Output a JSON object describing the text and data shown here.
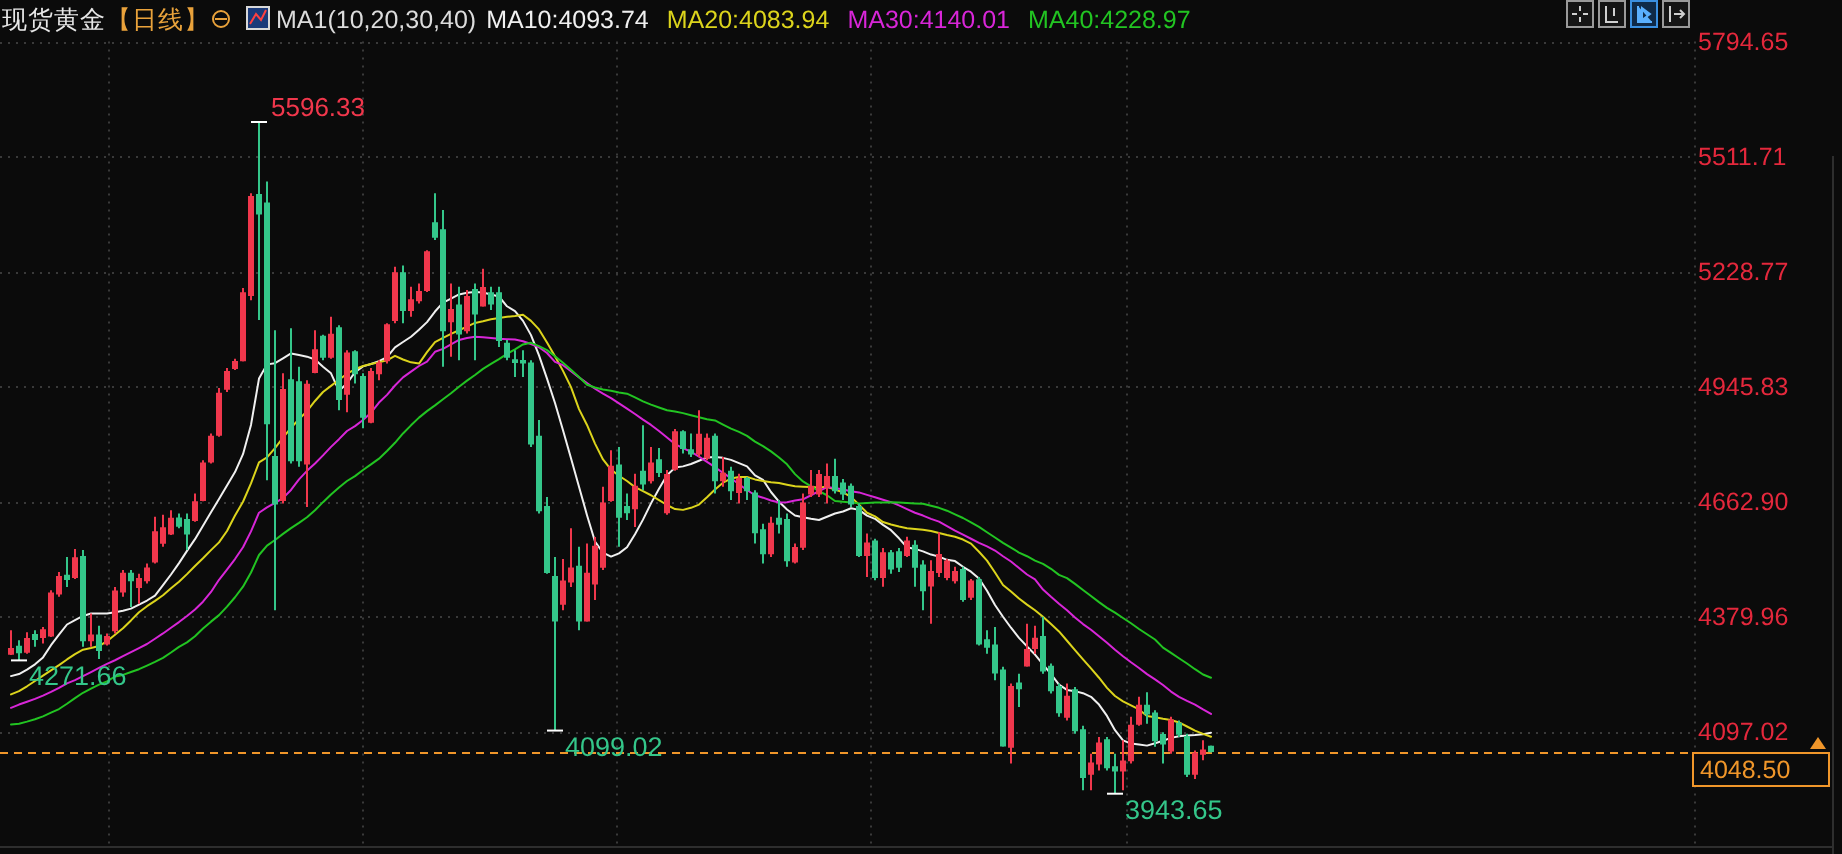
{
  "chart_data": {
    "type": "candlestick",
    "title": "现货黄金",
    "subtitle": "【日线】",
    "legend_title": "MA1(10,20,30,40)",
    "categories": [
      null,
      null,
      null,
      null,
      null,
      null,
      null,
      null,
      null,
      null,
      null,
      null,
      null,
      null,
      null,
      null,
      null,
      null,
      null,
      null,
      null,
      null,
      null,
      null,
      null,
      null,
      null,
      null,
      null,
      null,
      null,
      null,
      null,
      null,
      null,
      null,
      null,
      null,
      null,
      null,
      null,
      null,
      null,
      null,
      null,
      null,
      null,
      null,
      null,
      null,
      null,
      null,
      null,
      null,
      null,
      null,
      null,
      null,
      null,
      null,
      null,
      null,
      null,
      null,
      null,
      null,
      null,
      null,
      null,
      null,
      null,
      null,
      null,
      null,
      null,
      null,
      null,
      null,
      null,
      null,
      null,
      null,
      null,
      null,
      null,
      null,
      null,
      null,
      null,
      null,
      null,
      null,
      null,
      null,
      null,
      null,
      null,
      null,
      null,
      null,
      null,
      null,
      null,
      null,
      null,
      null,
      null,
      null,
      null,
      null,
      null,
      null,
      null,
      null,
      null,
      null,
      null,
      null,
      null,
      null,
      null,
      null,
      null,
      null,
      null,
      null,
      null,
      null,
      null,
      null,
      null,
      null,
      null,
      null,
      null,
      null,
      null,
      null,
      null,
      null,
      null,
      null,
      null,
      null,
      null,
      null,
      null,
      null,
      null,
      null,
      null
    ],
    "ohlc": [
      [
        4288,
        4346,
        4285,
        4300
      ],
      [
        4305,
        4321,
        4271.66,
        4292
      ],
      [
        4293,
        4341,
        4288,
        4324
      ],
      [
        4334,
        4346,
        4305,
        4324
      ],
      [
        4329,
        4354,
        4313,
        4346
      ],
      [
        4333,
        4444,
        4329,
        4436
      ],
      [
        4436,
        4489,
        4428,
        4477
      ],
      [
        4480,
        4526,
        4452,
        4472
      ],
      [
        4477,
        4546,
        4472,
        4523
      ],
      [
        4526,
        4543,
        4305,
        4321
      ],
      [
        4321,
        4387,
        4305,
        4333
      ],
      [
        4333,
        4357,
        4275,
        4297
      ],
      [
        4313,
        4338,
        4308,
        4329
      ],
      [
        4346,
        4452,
        4338,
        4441
      ],
      [
        4441,
        4494,
        4428,
        4485
      ],
      [
        4485,
        4494,
        4403,
        4469
      ],
      [
        4452,
        4485,
        4411,
        4472
      ],
      [
        4469,
        4510,
        4461,
        4498
      ],
      [
        4515,
        4625,
        4510,
        4587
      ],
      [
        4561,
        4630,
        4551,
        4597
      ],
      [
        4584,
        4641,
        4580,
        4620
      ],
      [
        4621,
        4633,
        4597,
        4603
      ],
      [
        4617,
        4633,
        4543,
        4584
      ],
      [
        4617,
        4682,
        4613,
        4661
      ],
      [
        4666,
        4764,
        4663,
        4756
      ],
      [
        4761,
        4830,
        4756,
        4822
      ],
      [
        4827,
        4942,
        4822,
        4928
      ],
      [
        4940,
        4991,
        4932,
        4981
      ],
      [
        4991,
        5014,
        4986,
        5006
      ],
      [
        5010,
        5188,
        5007,
        5175
      ],
      [
        5171,
        5421,
        5158,
        5412
      ],
      [
        5417,
        5596.33,
        5109,
        5371
      ],
      [
        5396,
        5450,
        4715,
        4855
      ],
      [
        4772,
        5084,
        4395,
        4658
      ],
      [
        4666,
        4978,
        4658,
        4937
      ],
      [
        4961,
        5089,
        4756,
        4764
      ],
      [
        4956,
        4994,
        4748,
        4764
      ],
      [
        4756,
        4961,
        4649,
        4950
      ],
      [
        4981,
        5084,
        4978,
        5035
      ],
      [
        5068,
        5073,
        5010,
        5019
      ],
      [
        5019,
        5117,
        5014,
        5073
      ],
      [
        5089,
        5096,
        4887,
        4915
      ],
      [
        4928,
        5035,
        4882,
        5027
      ],
      [
        5030,
        5035,
        4953,
        4978
      ],
      [
        4969,
        4978,
        4843,
        4871
      ],
      [
        4859,
        4991,
        4855,
        4981
      ],
      [
        4978,
        5010,
        4961,
        5002
      ],
      [
        5010,
        5101,
        5002,
        5096
      ],
      [
        5109,
        5240,
        5101,
        5224
      ],
      [
        5224,
        5243,
        5101,
        5134
      ],
      [
        5134,
        5191,
        5117,
        5158
      ],
      [
        5158,
        5199,
        5150,
        5178
      ],
      [
        5183,
        5281,
        5178,
        5276
      ],
      [
        5347,
        5421,
        5306,
        5314
      ],
      [
        5330,
        5380,
        4994,
        5084
      ],
      [
        5106,
        5199,
        5019,
        5134
      ],
      [
        5145,
        5191,
        5010,
        5076
      ],
      [
        5084,
        5183,
        5076,
        5166
      ],
      [
        5183,
        5199,
        5010,
        5125
      ],
      [
        5145,
        5235,
        5142,
        5188
      ],
      [
        5175,
        5191,
        5134,
        5150
      ],
      [
        5175,
        5191,
        5043,
        5060
      ],
      [
        5051,
        5060,
        5010,
        5019
      ],
      [
        5010,
        5035,
        4969,
        5006
      ],
      [
        5008,
        5035,
        4969,
        5005
      ],
      [
        5002,
        5010,
        4797,
        4805
      ],
      [
        4822,
        4863,
        4633,
        4641
      ],
      [
        4649,
        4674,
        4485,
        4489
      ],
      [
        4477,
        4526,
        4099.02,
        4370
      ],
      [
        4411,
        4521,
        4395,
        4466
      ],
      [
        4466,
        4597,
        4452,
        4498
      ],
      [
        4502,
        4551,
        4346,
        4370
      ],
      [
        4370,
        4559,
        4367,
        4485
      ],
      [
        4461,
        4575,
        4420,
        4551
      ],
      [
        4502,
        4699,
        4494,
        4658
      ],
      [
        4666,
        4789,
        4662,
        4748
      ],
      [
        4751,
        4797,
        4551,
        4625
      ],
      [
        4649,
        4682,
        4617,
        4636
      ],
      [
        4646,
        4731,
        4600,
        4699
      ],
      [
        4736,
        4850,
        4690,
        4707
      ],
      [
        4715,
        4797,
        4707,
        4756
      ],
      [
        4764,
        4794,
        4723,
        4735
      ],
      [
        4636,
        4740,
        4630,
        4728
      ],
      [
        4743,
        4841,
        4738,
        4833
      ],
      [
        4833,
        4838,
        4781,
        4794
      ],
      [
        4789,
        4830,
        4772,
        4781
      ],
      [
        4781,
        4887,
        4772,
        4827
      ],
      [
        4771,
        4830,
        4764,
        4817
      ],
      [
        4822,
        4830,
        4682,
        4715
      ],
      [
        4715,
        4772,
        4699,
        4731
      ],
      [
        4736,
        4748,
        4666,
        4690
      ],
      [
        4686,
        4731,
        4658,
        4718
      ],
      [
        4718,
        4723,
        4666,
        4690
      ],
      [
        4682,
        4690,
        4559,
        4587
      ],
      [
        4592,
        4608,
        4510,
        4535
      ],
      [
        4535,
        4625,
        4526,
        4608
      ],
      [
        4620,
        4666,
        4584,
        4608
      ],
      [
        4617,
        4633,
        4502,
        4518
      ],
      [
        4515,
        4559,
        4510,
        4548
      ],
      [
        4551,
        4682,
        4543,
        4658
      ],
      [
        4682,
        4740,
        4674,
        4699
      ],
      [
        4682,
        4740,
        4674,
        4728
      ],
      [
        4699,
        4756,
        4658,
        4723
      ],
      [
        4723,
        4768,
        4682,
        4690
      ],
      [
        4707,
        4718,
        4666,
        4682
      ],
      [
        4699,
        4707,
        4649,
        4658
      ],
      [
        4649,
        4658,
        4526,
        4531
      ],
      [
        4531,
        4584,
        4477,
        4559
      ],
      [
        4564,
        4571,
        4469,
        4477
      ],
      [
        4477,
        4548,
        4453,
        4535
      ],
      [
        4535,
        4543,
        4485,
        4498
      ],
      [
        4538,
        4548,
        4489,
        4502
      ],
      [
        4531,
        4576,
        4526,
        4564
      ],
      [
        4554,
        4567,
        4453,
        4502
      ],
      [
        4505,
        4518,
        4395,
        4444
      ],
      [
        4456,
        4518,
        4362,
        4489
      ],
      [
        4489,
        4587,
        4477,
        4531
      ],
      [
        4477,
        4521,
        4469,
        4515
      ],
      [
        4469,
        4502,
        4461,
        4489
      ],
      [
        4494,
        4502,
        4416,
        4423
      ],
      [
        4428,
        4472,
        4420,
        4466
      ],
      [
        4469,
        4477,
        4308,
        4313
      ],
      [
        4321,
        4346,
        4288,
        4305
      ],
      [
        4308,
        4354,
        4223,
        4242
      ],
      [
        4247,
        4256,
        4059,
        4062
      ],
      [
        4059,
        4215,
        4018,
        4206
      ],
      [
        4215,
        4239,
        4157,
        4203
      ],
      [
        4259,
        4362,
        4256,
        4297
      ],
      [
        4302,
        4357,
        4288,
        4325
      ],
      [
        4329,
        4379,
        4239,
        4247
      ],
      [
        4256,
        4264,
        4190,
        4198
      ],
      [
        4206,
        4215,
        4133,
        4144
      ],
      [
        4133,
        4215,
        4124,
        4182
      ],
      [
        4198,
        4206,
        4091,
        4100
      ],
      [
        4100,
        4111,
        3952,
        3985
      ],
      [
        3993,
        4042,
        3952,
        4018
      ],
      [
        4018,
        4083,
        4001,
        4067
      ],
      [
        4075,
        4083,
        4001,
        4009
      ],
      [
        4009,
        4042,
        3943.65,
        4001
      ],
      [
        4001,
        4075,
        3952,
        4023
      ],
      [
        4026,
        4133,
        4018,
        4111
      ],
      [
        4116,
        4182,
        4111,
        4160
      ],
      [
        4160,
        4193,
        4116,
        4141
      ],
      [
        4141,
        4149,
        4059,
        4075
      ],
      [
        4088,
        4095,
        4018,
        4067
      ],
      [
        4050,
        4133,
        4042,
        4124
      ],
      [
        4116,
        4124,
        4083,
        4091
      ],
      [
        4083,
        4091,
        3985,
        3993
      ],
      [
        3993,
        4050,
        3980,
        4042
      ],
      [
        4042,
        4075,
        4026,
        4050
      ],
      [
        4059,
        4062,
        4045,
        4048.5
      ]
    ],
    "colors": [
      "#f0374c",
      "#34c68a",
      "#f0374c",
      "#34c68a",
      "#f0374c",
      "#f0374c",
      "#f0374c",
      "#34c68a",
      "#f0374c",
      "#34c68a",
      "#f0374c",
      "#34c68a",
      "#f0374c",
      "#f0374c",
      "#f0374c",
      "#34c68a",
      "#f0374c",
      "#f0374c",
      "#f0374c",
      "#f0374c",
      "#f0374c",
      "#34c68a",
      "#34c68a",
      "#f0374c",
      "#f0374c",
      "#f0374c",
      "#f0374c",
      "#f0374c",
      "#f0374c",
      "#f0374c",
      "#f0374c",
      "#34c68a",
      "#34c68a",
      "#34c68a",
      "#f0374c",
      "#34c68a",
      "#34c68a",
      "#f0374c",
      "#f0374c",
      "#34c68a",
      "#f0374c",
      "#34c68a",
      "#f0374c",
      "#34c68a",
      "#34c68a",
      "#f0374c",
      "#f0374c",
      "#f0374c",
      "#f0374c",
      "#34c68a",
      "#f0374c",
      "#f0374c",
      "#f0374c",
      "#34c68a",
      "#34c68a",
      "#f0374c",
      "#34c68a",
      "#f0374c",
      "#34c68a",
      "#f0374c",
      "#34c68a",
      "#34c68a",
      "#34c68a",
      "#34c68a",
      "#34c68a",
      "#34c68a",
      "#34c68a",
      "#34c68a",
      "#34c68a",
      "#f0374c",
      "#f0374c",
      "#34c68a",
      "#f0374c",
      "#f0374c",
      "#f0374c",
      "#f0374c",
      "#34c68a",
      "#34c68a",
      "#f0374c",
      "#34c68a",
      "#f0374c",
      "#34c68a",
      "#f0374c",
      "#f0374c",
      "#34c68a",
      "#34c68a",
      "#f0374c",
      "#f0374c",
      "#34c68a",
      "#f0374c",
      "#34c68a",
      "#f0374c",
      "#34c68a",
      "#34c68a",
      "#34c68a",
      "#f0374c",
      "#34c68a",
      "#34c68a",
      "#f0374c",
      "#f0374c",
      "#f0374c",
      "#f0374c",
      "#f0374c",
      "#34c68a",
      "#34c68a",
      "#34c68a",
      "#34c68a",
      "#f0374c",
      "#34c68a",
      "#f0374c",
      "#34c68a",
      "#34c68a",
      "#f0374c",
      "#34c68a",
      "#34c68a",
      "#f0374c",
      "#f0374c",
      "#f0374c",
      "#f0374c",
      "#34c68a",
      "#f0374c",
      "#34c68a",
      "#34c68a",
      "#34c68a",
      "#34c68a",
      "#f0374c",
      "#34c68a",
      "#f0374c",
      "#f0374c",
      "#34c68a",
      "#34c68a",
      "#34c68a",
      "#f0374c",
      "#34c68a",
      "#34c68a",
      "#f0374c",
      "#f0374c",
      "#34c68a",
      "#34c68a",
      "#f0374c",
      "#f0374c",
      "#f0374c",
      "#34c68a",
      "#34c68a",
      "#34c68a",
      "#f0374c",
      "#34c68a",
      "#34c68a",
      "#f0374c",
      "#f0374c",
      "#34c68a"
    ],
    "series": [
      {
        "name": "MA10:4093.74",
        "type": "line",
        "color": "#f0f0f0",
        "values": [
          4233,
          4238,
          4249,
          4262,
          4279,
          4309,
          4335,
          4360,
          4371,
          4381,
          4387,
          4387,
          4387,
          4390,
          4394,
          4399,
          4409,
          4419,
          4431,
          4457,
          4483,
          4511,
          4541,
          4570,
          4603,
          4636,
          4669,
          4702,
          4735,
          4779,
          4851,
          4965,
          5000,
          5003,
          5015,
          5027,
          5023,
          5019,
          5012,
          4994,
          4978,
          4935,
          4953,
          4981,
          4995,
          5001,
          5008,
          5018,
          5042,
          5055,
          5068,
          5085,
          5104,
          5130,
          5152,
          5162,
          5172,
          5176,
          5178,
          5177,
          5172,
          5167,
          5143,
          5131,
          5107,
          5072,
          5022,
          4965,
          4905,
          4838,
          4769,
          4699,
          4629,
          4564,
          4537,
          4527,
          4535,
          4550,
          4582,
          4618,
          4658,
          4694,
          4727,
          4746,
          4749,
          4755,
          4763,
          4771,
          4772,
          4770,
          4765,
          4757,
          4749,
          4727,
          4716,
          4686,
          4662,
          4643,
          4628,
          4624,
          4620,
          4617,
          4625,
          4633,
          4638,
          4646,
          4642,
          4628,
          4620,
          4605,
          4592,
          4572,
          4550,
          4546,
          4540,
          4532,
          4527,
          4519,
          4516,
          4502,
          4490,
          4473,
          4443,
          4408,
          4379,
          4352,
          4327,
          4306,
          4286,
          4262,
          4238,
          4212,
          4199,
          4196,
          4191,
          4182,
          4163,
          4135,
          4100,
          4075,
          4067,
          4065,
          4062,
          4068,
          4074,
          4081,
          4085,
          4087,
          4088,
          4090,
          4093.74
        ]
      },
      {
        "name": "MA20:4083.94",
        "type": "line",
        "color": "#dcd41c",
        "values": [
          4188,
          4196,
          4208,
          4221,
          4234,
          4247,
          4260,
          4274,
          4287,
          4298,
          4302,
          4307,
          4319,
          4335,
          4351,
          4370,
          4390,
          4405,
          4418,
          4432,
          4449,
          4465,
          4484,
          4504,
          4523,
          4543,
          4562,
          4590,
          4628,
          4662,
          4707,
          4759,
          4771,
          4794,
          4820,
          4844,
          4865,
          4885,
          4910,
          4932,
          4947,
          4962,
          4977,
          4988,
          4996,
          5001,
          5005,
          5010,
          5021,
          5012,
          5005,
          5002,
          5030,
          5055,
          5065,
          5075,
          5084,
          5093,
          5102,
          5106,
          5111,
          5114,
          5117,
          5119,
          5122,
          5107,
          5086,
          5054,
          5020,
          4984,
          4944,
          4890,
          4851,
          4805,
          4766,
          4741,
          4726,
          4713,
          4698,
          4688,
          4678,
          4666,
          4654,
          4644,
          4642,
          4647,
          4655,
          4673,
          4692,
          4709,
          4719,
          4723,
          4723,
          4717,
          4713,
          4710,
          4708,
          4704,
          4700,
          4699,
          4698,
          4697,
          4699,
          4692,
          4685,
          4674,
          4655,
          4635,
          4626,
          4612,
          4606,
          4601,
          4597,
          4595,
          4593,
          4590,
          4585,
          4580,
          4576,
          4569,
          4559,
          4539,
          4517,
          4488,
          4457,
          4441,
          4424,
          4409,
          4395,
          4379,
          4361,
          4343,
          4320,
          4297,
          4274,
          4252,
          4229,
          4204,
          4184,
          4171,
          4161,
          4151,
          4135,
          4132,
          4128,
          4125,
          4119,
          4109,
          4099,
          4091,
          4083.94
        ]
      },
      {
        "name": "MA30:4140.01",
        "type": "line",
        "color": "#d826d8",
        "values": [
          4155,
          4163,
          4170,
          4177,
          4185,
          4194,
          4204,
          4215,
          4223,
          4233,
          4243,
          4253,
          4263,
          4272,
          4282,
          4292,
          4302,
          4312,
          4325,
          4338,
          4352,
          4366,
          4381,
          4397,
          4416,
          4440,
          4470,
          4495,
          4521,
          4550,
          4589,
          4635,
          4648,
          4659,
          4671,
          4691,
          4717,
          4738,
          4756,
          4776,
          4797,
          4816,
          4836,
          4848,
          4863,
          4881,
          4906,
          4925,
          4948,
          4968,
          4982,
          4996,
          5007,
          5031,
          5038,
          5049,
          5060,
          5065,
          5068,
          5067,
          5065,
          5063,
          5062,
          5061,
          5057,
          5050,
          5042,
          5028,
          5006,
          4998,
          4983,
          4968,
          4954,
          4940,
          4928,
          4917,
          4904,
          4891,
          4878,
          4864,
          4851,
          4836,
          4820,
          4804,
          4794,
          4785,
          4773,
          4760,
          4747,
          4733,
          4720,
          4705,
          4691,
          4678,
          4672,
          4665,
          4660,
          4661,
          4665,
          4668,
          4678,
          4688,
          4698,
          4696,
          4692,
          4688,
          4685,
          4679,
          4673,
          4667,
          4661,
          4653,
          4644,
          4635,
          4628,
          4620,
          4613,
          4602,
          4591,
          4581,
          4571,
          4561,
          4552,
          4542,
          4528,
          4515,
          4499,
          4483,
          4471,
          4446,
          4428,
          4411,
          4395,
          4377,
          4361,
          4347,
          4331,
          4315,
          4298,
          4282,
          4267,
          4253,
          4238,
          4225,
          4211,
          4195,
          4182,
          4172,
          4163,
          4151,
          4140.01
        ]
      },
      {
        "name": "MA40:4228.97",
        "type": "line",
        "color": "#22c422",
        "values": [
          4114,
          4116,
          4121,
          4127,
          4134,
          4143,
          4152,
          4165,
          4179,
          4192,
          4202,
          4212,
          4220,
          4232,
          4236,
          4243,
          4250,
          4259,
          4268,
          4278,
          4291,
          4305,
          4316,
          4331,
          4350,
          4367,
          4383,
          4404,
          4427,
          4453,
          4488,
          4531,
          4554,
          4568,
          4583,
          4597,
          4610,
          4624,
          4641,
          4661,
          4680,
          4697,
          4713,
          4725,
          4740,
          4754,
          4768,
          4787,
          4807,
          4830,
          4850,
          4869,
          4885,
          4899,
          4914,
          4929,
          4945,
          4960,
          4974,
          4989,
          5001,
          5013,
          5026,
          5037,
          5049,
          5053,
          5045,
          5035,
          5020,
          5004,
          4987,
          4969,
          4950,
          4943,
          4938,
          4935,
          4931,
          4928,
          4919,
          4909,
          4901,
          4894,
          4887,
          4884,
          4880,
          4875,
          4870,
          4865,
          4862,
          4852,
          4842,
          4834,
          4824,
          4810,
          4799,
          4786,
          4771,
          4754,
          4730,
          4712,
          4700,
          4688,
          4678,
          4664,
          4662,
          4660,
          4658,
          4659,
          4660,
          4660,
          4661,
          4660,
          4659,
          4658,
          4657,
          4652,
          4647,
          4640,
          4631,
          4622,
          4611,
          4600,
          4587,
          4574,
          4561,
          4549,
          4537,
          4528,
          4517,
          4509,
          4497,
          4482,
          4474,
          4460,
          4445,
          4430,
          4415,
          4401,
          4389,
          4376,
          4363,
          4349,
          4336,
          4323,
          4303,
          4290,
          4277,
          4264,
          4250,
          4237,
          4228.97
        ]
      }
    ],
    "ylim": [
      3815,
      5794.65
    ],
    "yticks": [
      5794.65,
      5511.71,
      5228.77,
      4945.83,
      {
        "value": 4662.9,
        "label": "4662.90"
      },
      4379.96,
      4097.02
    ],
    "tick_labels": "y",
    "grid": true,
    "legend": "top",
    "ref_lines": [
      {
        "axis": "y",
        "value": 4048.5,
        "label": "4048.50",
        "color": "#f0962a",
        "line_style": "dashed"
      }
    ],
    "annotations": [
      "4271.66",
      "5596.33",
      "4099.02",
      "3943.65"
    ]
  }
}
